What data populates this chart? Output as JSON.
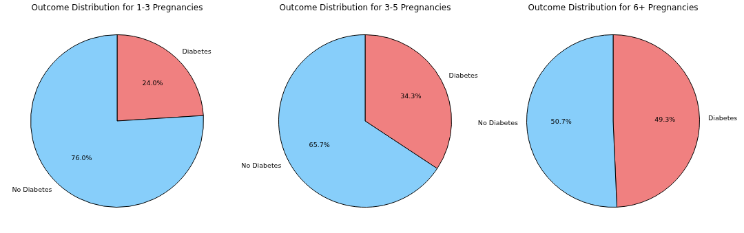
{
  "chart_data": [
    {
      "type": "pie",
      "title": "Outcome Distribution for 1-3 Pregnancies",
      "categories": [
        "Diabetes",
        "No Diabetes"
      ],
      "values": [
        24.0,
        76.0
      ],
      "colors": [
        "#f08080",
        "#87cefa"
      ],
      "value_labels": [
        "24.0%",
        "76.0%"
      ],
      "legend": false
    },
    {
      "type": "pie",
      "title": "Outcome Distribution for 3-5 Pregnancies",
      "categories": [
        "Diabetes",
        "No Diabetes"
      ],
      "values": [
        34.3,
        65.7
      ],
      "colors": [
        "#f08080",
        "#87cefa"
      ],
      "value_labels": [
        "34.3%",
        "65.7%"
      ],
      "legend": false
    },
    {
      "type": "pie",
      "title": "Outcome Distribution for 6+ Pregnancies",
      "categories": [
        "Diabetes",
        "No Diabetes"
      ],
      "values": [
        49.3,
        50.7
      ],
      "colors": [
        "#f08080",
        "#87cefa"
      ],
      "value_labels": [
        "49.3%",
        "50.7%"
      ],
      "legend": false
    }
  ]
}
